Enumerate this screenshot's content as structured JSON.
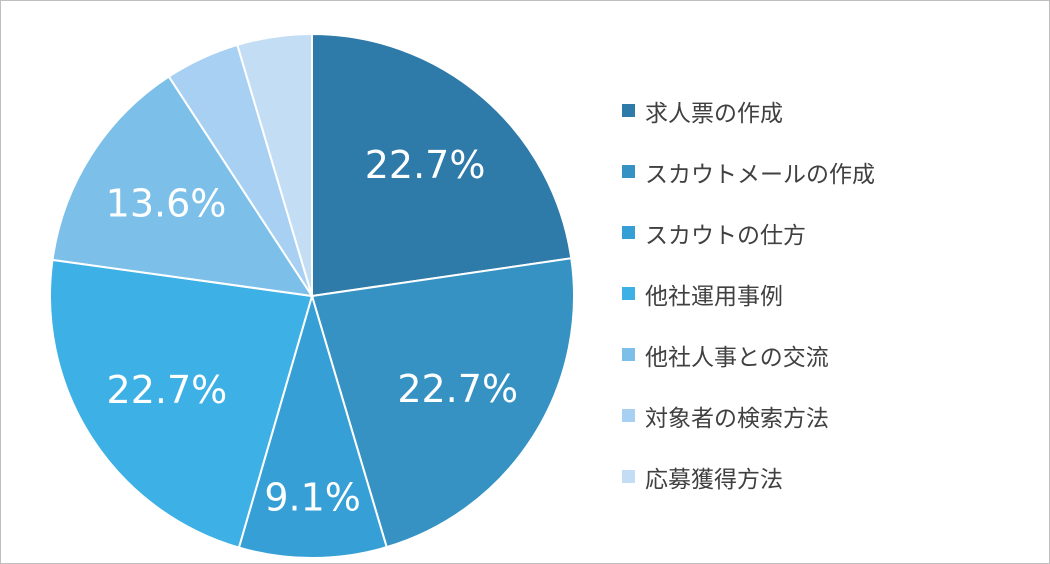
{
  "chart_data": {
    "type": "pie",
    "title": "",
    "categories": [
      "求人票の作成",
      "スカウトメールの作成",
      "スカウトの仕方",
      "他社運用事例",
      "他社人事との交流",
      "対象者の検索方法",
      "応募獲得方法"
    ],
    "values": [
      22.7,
      22.7,
      9.1,
      22.7,
      13.6,
      4.6,
      4.6
    ],
    "data_labels": [
      "22.7%",
      "22.7%",
      "9.1%",
      "22.7%",
      "13.6%",
      "",
      ""
    ],
    "colors": [
      "#2e7aa8",
      "#3592c3",
      "#36a0d6",
      "#3db0e6",
      "#7cc0ea",
      "#a8d0f2",
      "#c3def4"
    ],
    "legend_position": "right",
    "start_angle": "12 o'clock, clockwise"
  }
}
